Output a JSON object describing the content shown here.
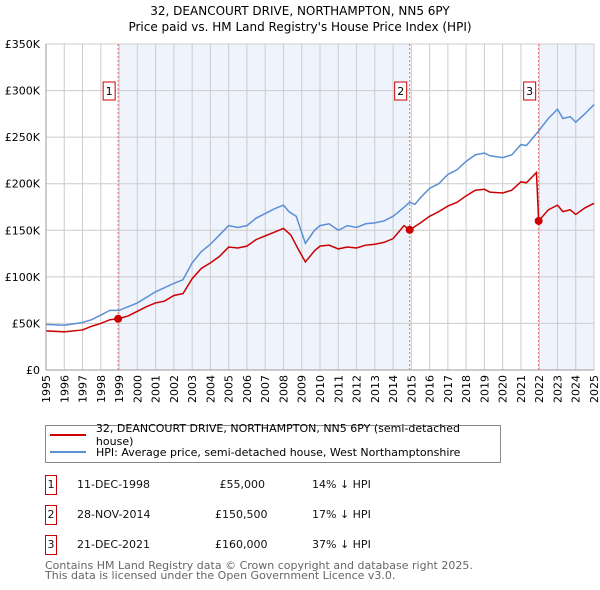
{
  "chart_data": {
    "type": "line",
    "title": "32, DEANCOURT DRIVE, NORTHAMPTON, NN5 6PY",
    "subtitle": "Price paid vs. HM Land Registry's House Price Index (HPI)",
    "xlim": [
      1995,
      2025
    ],
    "ylim": [
      0,
      350000
    ],
    "y_ticks": [
      {
        "v": 0,
        "label": "£0"
      },
      {
        "v": 50000,
        "label": "£50K"
      },
      {
        "v": 100000,
        "label": "£100K"
      },
      {
        "v": 150000,
        "label": "£150K"
      },
      {
        "v": 200000,
        "label": "£200K"
      },
      {
        "v": 250000,
        "label": "£250K"
      },
      {
        "v": 300000,
        "label": "£300K"
      },
      {
        "v": 350000,
        "label": "£350K"
      }
    ],
    "x_ticks": [
      "1995",
      "1996",
      "1997",
      "1998",
      "1999",
      "2000",
      "2001",
      "2002",
      "2003",
      "2004",
      "2005",
      "2006",
      "2007",
      "2008",
      "2009",
      "2010",
      "2011",
      "2012",
      "2013",
      "2014",
      "2015",
      "2016",
      "2017",
      "2018",
      "2019",
      "2020",
      "2021",
      "2022",
      "2023",
      "2024",
      "2025"
    ],
    "grid": true,
    "series": [
      {
        "name": "32, DEANCOURT DRIVE, NORTHAMPTON, NN5 6PY (semi-detached house)",
        "color": "#cc0000",
        "x": [
          1995,
          1996,
          1997,
          1997.5,
          1998,
          1998.5,
          1998.95,
          1999.5,
          2000,
          2000.5,
          2001,
          2001.5,
          2002,
          2002.5,
          2003,
          2003.5,
          2004,
          2004.5,
          2005,
          2005.5,
          2006,
          2006.5,
          2007,
          2007.5,
          2008,
          2008.4,
          2008.8,
          2009.2,
          2009.7,
          2010,
          2010.5,
          2011,
          2011.5,
          2012,
          2012.5,
          2013,
          2013.5,
          2014,
          2014.6,
          2014.91,
          2015.5,
          2016,
          2016.5,
          2017,
          2017.5,
          2018,
          2018.5,
          2019,
          2019.3,
          2020,
          2020.5,
          2021,
          2021.3,
          2021.85,
          2021.97,
          2022.5,
          2023,
          2023.3,
          2023.7,
          2024,
          2024.5,
          2025
        ],
        "y": [
          42000,
          41000,
          43000,
          47000,
          50000,
          54000,
          55000,
          58000,
          63000,
          68000,
          72000,
          74000,
          80000,
          82000,
          98000,
          109000,
          115000,
          122000,
          132000,
          131000,
          133000,
          140000,
          144000,
          148000,
          152000,
          145000,
          130000,
          116000,
          128000,
          133000,
          134000,
          130000,
          132000,
          131000,
          134000,
          135000,
          137000,
          141000,
          155000,
          150500,
          158000,
          165000,
          170000,
          176000,
          180000,
          187000,
          193000,
          194000,
          191000,
          190000,
          193000,
          202000,
          201000,
          212000,
          160000,
          172000,
          177000,
          170000,
          172000,
          167000,
          174000,
          179000
        ]
      },
      {
        "name": "HPI: Average price, semi-detached house, West Northamptonshire",
        "color": "#5b8fd4",
        "x": [
          1995,
          1996,
          1997,
          1997.5,
          1998,
          1998.5,
          1999,
          2000,
          2000.5,
          2001,
          2002,
          2002.5,
          2003,
          2003.5,
          2004,
          2004.5,
          2005,
          2005.5,
          2006,
          2006.5,
          2007,
          2007.5,
          2008,
          2008.3,
          2008.7,
          2009.2,
          2009.7,
          2010,
          2010.5,
          2011,
          2011.5,
          2012,
          2012.5,
          2013,
          2013.5,
          2014,
          2014.5,
          2014.9,
          2015.2,
          2015.5,
          2016,
          2016.5,
          2017,
          2017.5,
          2018,
          2018.5,
          2019,
          2019.3,
          2020,
          2020.5,
          2021,
          2021.3,
          2021.9,
          2022.5,
          2023,
          2023.3,
          2023.7,
          2024,
          2024.5,
          2025
        ],
        "y": [
          49000,
          48000,
          51000,
          54000,
          59000,
          64000,
          64000,
          72000,
          78000,
          84000,
          93000,
          97000,
          115000,
          127000,
          135000,
          145000,
          155000,
          153000,
          155000,
          163000,
          168000,
          173000,
          177000,
          170000,
          165000,
          136000,
          150000,
          155000,
          157000,
          150000,
          155000,
          153000,
          157000,
          158000,
          160000,
          165000,
          173000,
          180000,
          178000,
          185000,
          195000,
          200000,
          210000,
          215000,
          224000,
          231000,
          233000,
          230000,
          228000,
          231000,
          242000,
          241000,
          255000,
          270000,
          280000,
          270000,
          272000,
          266000,
          275000,
          285000
        ]
      }
    ],
    "sales": [
      {
        "label": "1",
        "x": 1998.95,
        "y": 55000,
        "date": "11-DEC-1998",
        "price": "£55,000",
        "hpi": "14% ↓ HPI"
      },
      {
        "label": "2",
        "x": 2014.91,
        "y": 150500,
        "date": "28-NOV-2014",
        "price": "£150,500",
        "hpi": "17% ↓ HPI"
      },
      {
        "label": "3",
        "x": 2021.97,
        "y": 160000,
        "date": "21-DEC-2021",
        "price": "£160,000",
        "hpi": "37% ↓ HPI"
      }
    ],
    "shaded": [
      [
        1998.95,
        2014.91
      ],
      [
        2021.97,
        2025
      ]
    ]
  },
  "footer": {
    "line1": "Contains HM Land Registry data © Crown copyright and database right 2025.",
    "line2": "This data is licensed under the Open Government Licence v3.0."
  }
}
